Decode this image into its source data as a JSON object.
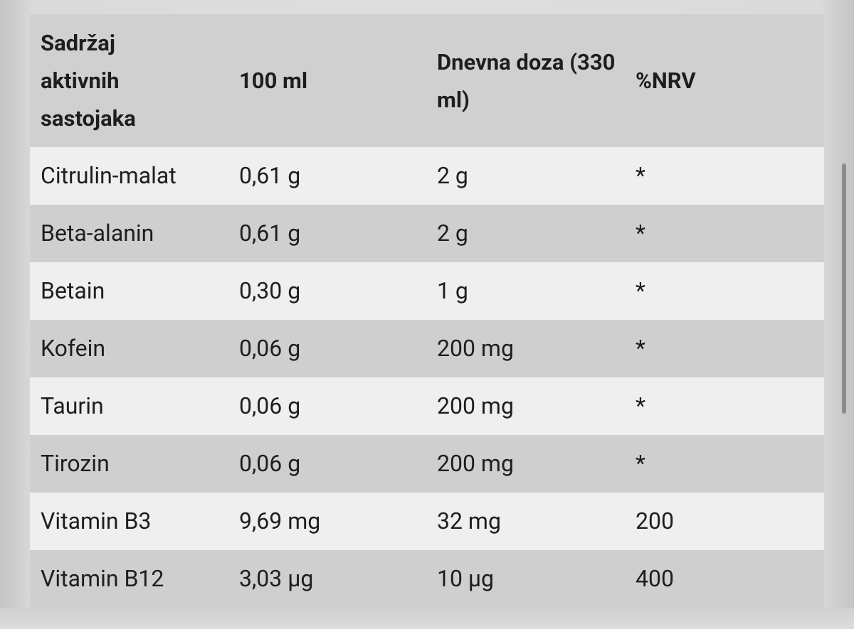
{
  "table": {
    "header": [
      "Sadržaj aktivnih sastojaka",
      "100 ml",
      "Dnevna doza (330 ml)",
      "%NRV"
    ],
    "rows": [
      [
        "Citrulin-malat",
        "0,61 g",
        "2 g",
        "*"
      ],
      [
        "Beta-alanin",
        "0,61 g",
        "2 g",
        "*"
      ],
      [
        "Betain",
        "0,30 g",
        "1 g",
        "*"
      ],
      [
        "Kofein",
        "0,06 g",
        "200 mg",
        "*"
      ],
      [
        "Taurin",
        "0,06 g",
        "200 mg",
        "*"
      ],
      [
        "Tirozin",
        "0,06 g",
        "200 mg",
        "*"
      ],
      [
        "Vitamin B3",
        "9,69 mg",
        "32 mg",
        "200"
      ],
      [
        "Vitamin B12",
        "3,03 µg",
        "10 µg",
        "400"
      ]
    ]
  }
}
